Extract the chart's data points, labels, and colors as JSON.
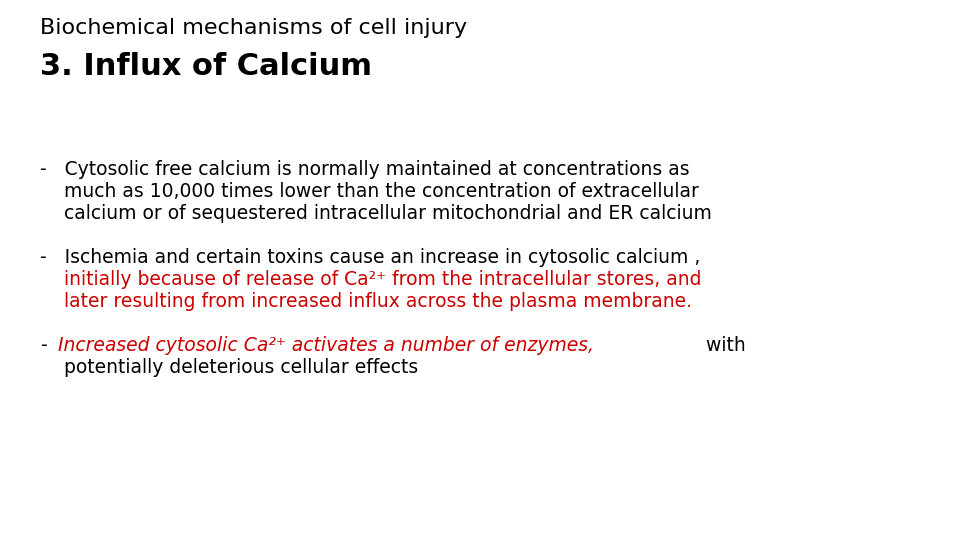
{
  "bg_color": "#ffffff",
  "title_line1": "Biochemical mechanisms of cell injury",
  "title_line2": "3. Influx of Calcium",
  "title_line1_fontsize": 16,
  "title_line2_fontsize": 22,
  "title_color": "#000000",
  "black_color": "#000000",
  "red_color": "#cc0000",
  "body_fontsize": 13.5,
  "bullet1_line1": "-   Cytosolic free calcium is normally maintained at concentrations as",
  "bullet1_line2": "    much as 10,000 times lower than the concentration of extracellular",
  "bullet1_line3": "    calcium or of sequestered intracellular mitochondrial and ER calcium",
  "bullet2_line1_black": "-   Ischemia and certain toxins cause an increase in cytosolic calcium ,",
  "bullet2_line2_red": "    initially because of release of Ca²⁺ from the intracellular stores, and",
  "bullet2_line3_red": "    later resulting from increased influx across the plasma membrane.",
  "bullet3_dash": "-",
  "bullet3_red_italic": "   Increased cytosolic Ca²⁺ activates a number of enzymes,",
  "bullet3_with": " with",
  "bullet3_line2": "    potentially deleterious cellular effects"
}
